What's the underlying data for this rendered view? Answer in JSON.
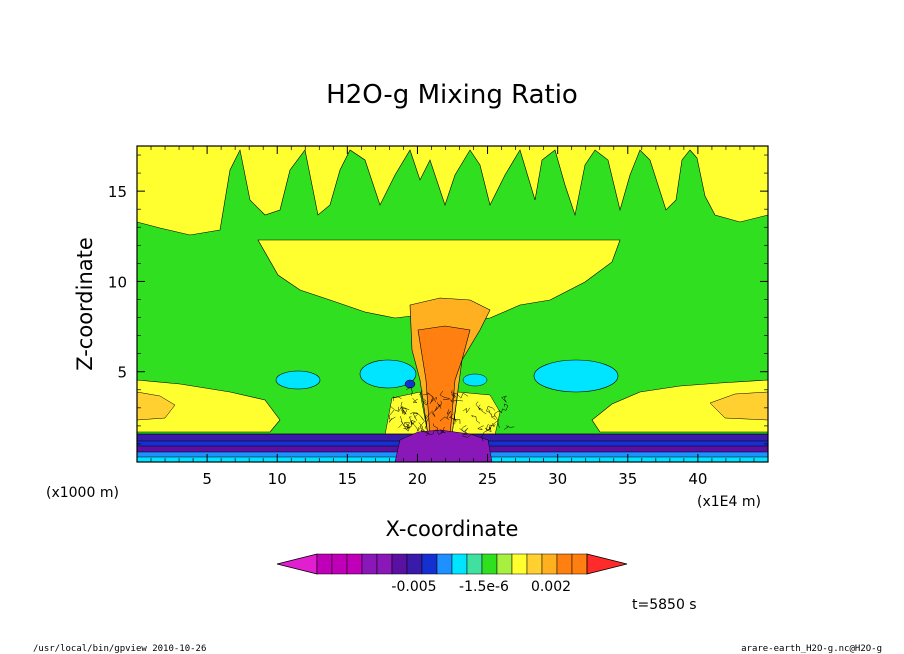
{
  "chart_data": {
    "type": "heatmap",
    "title": "H2O-g Mixing Ratio",
    "xlabel": "X-coordinate",
    "ylabel": "Z-coordinate",
    "x_unit": "(x1E4 m)",
    "y_unit": "(x1000 m)",
    "xlim": [
      0,
      45
    ],
    "ylim": [
      0,
      17.5
    ],
    "x_ticks": [
      "5",
      "10",
      "15",
      "20",
      "25",
      "30",
      "35",
      "40"
    ],
    "x_tick_values": [
      5,
      10,
      15,
      20,
      25,
      30,
      35,
      40
    ],
    "y_ticks": [
      "5",
      "10",
      "15"
    ],
    "y_tick_values": [
      5,
      10,
      15
    ],
    "colorbar": {
      "labels": [
        "-0.005",
        "-1.5e-6",
        "0.002"
      ],
      "colors": [
        "#e020d0",
        "#c000b8",
        "#c000b8",
        "#c000b8",
        "#8a18b8",
        "#8a18b8",
        "#5a10a0",
        "#3a1aa8",
        "#1530d0",
        "#1e90ff",
        "#00e5ff",
        "#40e0a0",
        "#30e020",
        "#a8f040",
        "#ffff30",
        "#ffd030",
        "#ffb020",
        "#ff8010",
        "#ff8010",
        "#ff2a2a"
      ]
    },
    "regions": {
      "background": "#30e020",
      "upper_band_yellow": "#ffff30",
      "cloud_anvil_yellow": "#ffff30",
      "surface_bands": [
        "#3a1aa8",
        "#1530d0",
        "#5a10a0",
        "#1e90ff",
        "#00e5ff"
      ],
      "core_orange": "#ff8010",
      "core_light_orange": "#ffb020",
      "cyan_patches": "#00e5ff",
      "purple_core": "#8a18b8"
    }
  },
  "annotation_time": "t=5850 s",
  "footer_left": "/usr/local/bin/gpview  2010-10-26",
  "footer_right": "arare-earth_H2O-g.nc@H2O-g"
}
